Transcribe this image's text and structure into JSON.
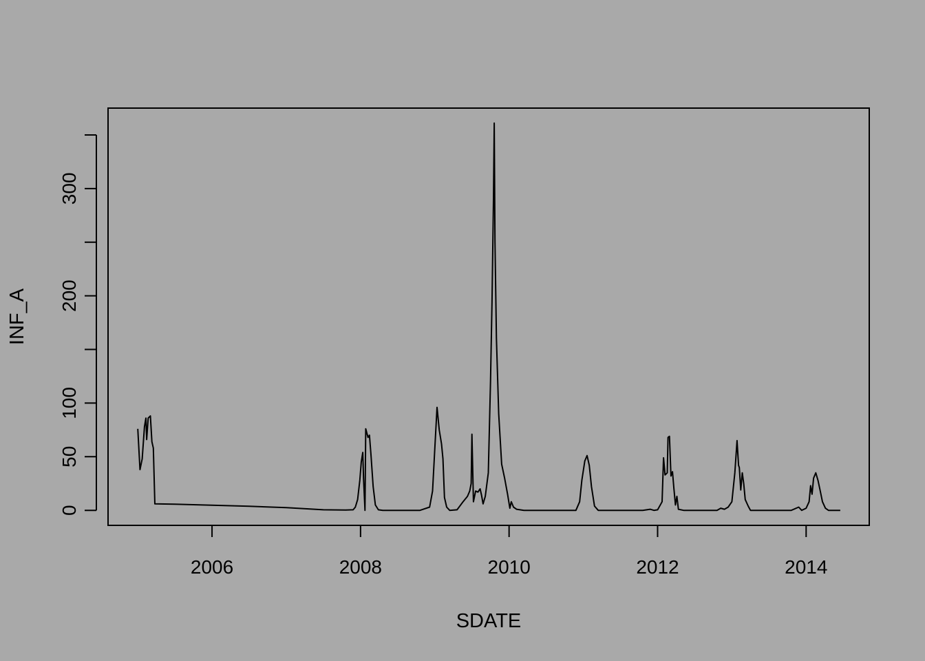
{
  "chart_data": {
    "type": "line",
    "title": "",
    "xlabel": "SDATE",
    "ylabel": "INF_A",
    "xlim": [
      2004.6,
      2014.85
    ],
    "ylim": [
      -14,
      375
    ],
    "x_ticks": [
      2006,
      2008,
      2010,
      2012,
      2014
    ],
    "x_tick_labels": [
      "2006",
      "2008",
      "2010",
      "2012",
      "2014"
    ],
    "y_ticks": [
      0,
      50,
      100,
      150,
      200,
      250,
      300,
      350
    ],
    "y_tick_labels": [
      "0",
      "50",
      "100",
      "",
      "200",
      "",
      "300",
      ""
    ],
    "grid": false,
    "series": [
      {
        "name": "INF_A",
        "color": "#000000",
        "points": [
          [
            2005.0,
            76
          ],
          [
            2005.03,
            38
          ],
          [
            2005.06,
            48
          ],
          [
            2005.09,
            78
          ],
          [
            2005.11,
            86
          ],
          [
            2005.12,
            66
          ],
          [
            2005.14,
            86
          ],
          [
            2005.17,
            88
          ],
          [
            2005.19,
            64
          ],
          [
            2005.21,
            58
          ],
          [
            2005.23,
            6
          ],
          [
            2005.5,
            5.7
          ],
          [
            2006.0,
            4.8
          ],
          [
            2006.5,
            3.8
          ],
          [
            2007.0,
            2.5
          ],
          [
            2007.5,
            0.5
          ],
          [
            2007.8,
            0.3
          ],
          [
            2007.9,
            0.5
          ],
          [
            2007.93,
            3
          ],
          [
            2007.96,
            10
          ],
          [
            2007.99,
            28
          ],
          [
            2008.01,
            45
          ],
          [
            2008.03,
            54
          ],
          [
            2008.04,
            30
          ],
          [
            2008.06,
            0
          ],
          [
            2008.07,
            76
          ],
          [
            2008.1,
            68
          ],
          [
            2008.12,
            70
          ],
          [
            2008.14,
            52
          ],
          [
            2008.17,
            22
          ],
          [
            2008.2,
            5
          ],
          [
            2008.24,
            0.5
          ],
          [
            2008.3,
            0
          ],
          [
            2008.8,
            0
          ],
          [
            2008.93,
            3
          ],
          [
            2008.97,
            18
          ],
          [
            2009.0,
            58
          ],
          [
            2009.03,
            96
          ],
          [
            2009.06,
            75
          ],
          [
            2009.09,
            62
          ],
          [
            2009.11,
            48
          ],
          [
            2009.13,
            12
          ],
          [
            2009.16,
            3
          ],
          [
            2009.2,
            0
          ],
          [
            2009.3,
            0.5
          ],
          [
            2009.38,
            8
          ],
          [
            2009.44,
            13
          ],
          [
            2009.47,
            18
          ],
          [
            2009.49,
            25
          ],
          [
            2009.5,
            71
          ],
          [
            2009.52,
            8
          ],
          [
            2009.55,
            18
          ],
          [
            2009.58,
            17
          ],
          [
            2009.61,
            20
          ],
          [
            2009.63,
            14
          ],
          [
            2009.65,
            6
          ],
          [
            2009.68,
            13
          ],
          [
            2009.72,
            35
          ],
          [
            2009.75,
            120
          ],
          [
            2009.77,
            195
          ],
          [
            2009.79,
            290
          ],
          [
            2009.8,
            361
          ],
          [
            2009.81,
            250
          ],
          [
            2009.83,
            160
          ],
          [
            2009.86,
            90
          ],
          [
            2009.9,
            43
          ],
          [
            2009.94,
            30
          ],
          [
            2009.98,
            15
          ],
          [
            2010.01,
            2
          ],
          [
            2010.03,
            8
          ],
          [
            2010.06,
            3
          ],
          [
            2010.1,
            1
          ],
          [
            2010.2,
            0
          ],
          [
            2010.9,
            0
          ],
          [
            2010.95,
            8
          ],
          [
            2010.98,
            28
          ],
          [
            2011.02,
            46
          ],
          [
            2011.05,
            51
          ],
          [
            2011.08,
            42
          ],
          [
            2011.11,
            22
          ],
          [
            2011.15,
            4
          ],
          [
            2011.2,
            0
          ],
          [
            2011.8,
            0
          ],
          [
            2011.9,
            1
          ],
          [
            2011.95,
            0
          ],
          [
            2012.0,
            0.5
          ],
          [
            2012.06,
            8
          ],
          [
            2012.08,
            49
          ],
          [
            2012.1,
            33
          ],
          [
            2012.13,
            35
          ],
          [
            2012.14,
            68
          ],
          [
            2012.16,
            69
          ],
          [
            2012.18,
            32
          ],
          [
            2012.2,
            36
          ],
          [
            2012.22,
            20
          ],
          [
            2012.24,
            5
          ],
          [
            2012.26,
            13
          ],
          [
            2012.28,
            1
          ],
          [
            2012.35,
            0
          ],
          [
            2012.8,
            0
          ],
          [
            2012.85,
            2
          ],
          [
            2012.9,
            1
          ],
          [
            2012.95,
            3
          ],
          [
            2013.0,
            8
          ],
          [
            2013.04,
            35
          ],
          [
            2013.07,
            65
          ],
          [
            2013.09,
            42
          ],
          [
            2013.1,
            40
          ],
          [
            2013.12,
            19
          ],
          [
            2013.14,
            35
          ],
          [
            2013.16,
            25
          ],
          [
            2013.18,
            10
          ],
          [
            2013.22,
            4
          ],
          [
            2013.25,
            0
          ],
          [
            2013.8,
            0
          ],
          [
            2013.9,
            3
          ],
          [
            2013.94,
            0
          ],
          [
            2014.0,
            2
          ],
          [
            2014.04,
            8
          ],
          [
            2014.06,
            23
          ],
          [
            2014.08,
            15
          ],
          [
            2014.1,
            30
          ],
          [
            2014.13,
            35
          ],
          [
            2014.16,
            28
          ],
          [
            2014.19,
            18
          ],
          [
            2014.22,
            8
          ],
          [
            2014.26,
            2
          ],
          [
            2014.3,
            0
          ],
          [
            2014.46,
            0
          ]
        ]
      }
    ]
  }
}
